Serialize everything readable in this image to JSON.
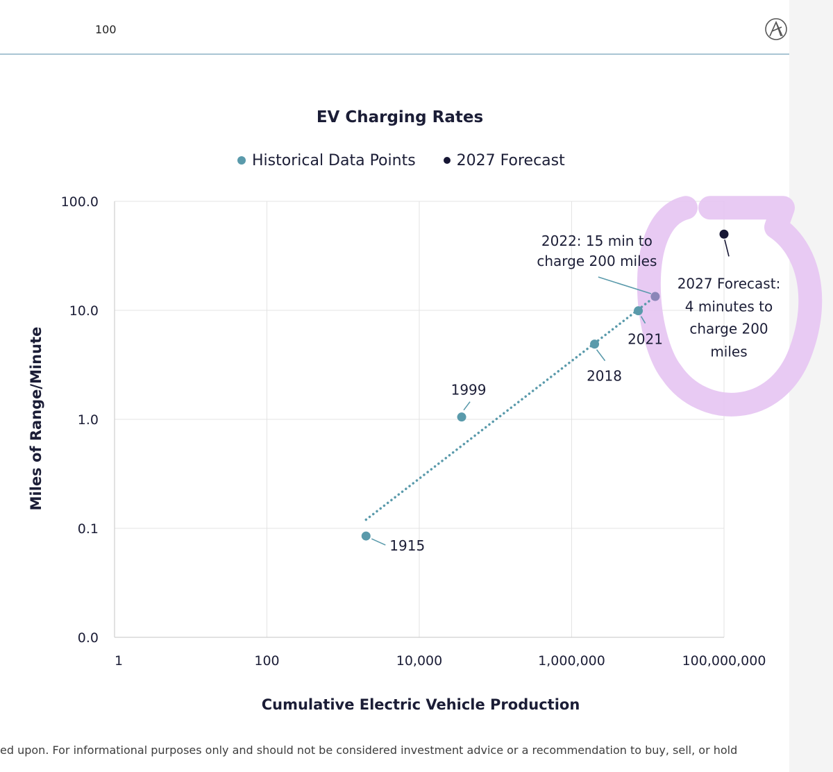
{
  "page": {
    "page_number": "100",
    "disclaimer": "ed upon. For informational purposes only and should not be considered investment advice or a recommendation to buy, sell, or hold"
  },
  "colors": {
    "historical": "#5a9aab",
    "forecast": "#161634",
    "highlight_2022": "#8b86b8",
    "highlight_mark": "#e6c6f2",
    "trendline": "#5a9aab",
    "grid": "#e3e3e3"
  },
  "icons": {
    "logo": "ark-logo-icon"
  },
  "chart_data": {
    "type": "scatter",
    "title": "EV Charging Rates",
    "xlabel": "Cumulative Electric Vehicle Production",
    "ylabel": "Miles of Range/Minute",
    "x_scale": "log",
    "y_scale": "log",
    "xlim": [
      1,
      100000000
    ],
    "ylim": [
      0.01,
      100
    ],
    "x_ticks": [
      {
        "value": 1,
        "label": "1"
      },
      {
        "value": 100,
        "label": "100"
      },
      {
        "value": 10000,
        "label": "10,000"
      },
      {
        "value": 1000000,
        "label": "1,000,000"
      },
      {
        "value": 100000000,
        "label": "100,000,000"
      }
    ],
    "y_ticks": [
      {
        "value": 0.01,
        "label": "0.0"
      },
      {
        "value": 0.1,
        "label": "0.1"
      },
      {
        "value": 1,
        "label": "1.0"
      },
      {
        "value": 10,
        "label": "10.0"
      },
      {
        "value": 100,
        "label": "100.0"
      }
    ],
    "legend": [
      "Historical Data Points",
      "2027 Forecast"
    ],
    "legend_position": "top-center",
    "grid": true,
    "series": [
      {
        "name": "Historical Data Points",
        "points": [
          {
            "label": "1915",
            "x": 2000,
            "y": 0.085
          },
          {
            "label": "1999",
            "x": 36000,
            "y": 1.05
          },
          {
            "label": "2018",
            "x": 2000000,
            "y": 4.9
          },
          {
            "label": "2021",
            "x": 7500000,
            "y": 9.9
          },
          {
            "label": "2022: 15 min to charge 200 miles",
            "x": 12500000,
            "y": 13.4
          }
        ]
      },
      {
        "name": "2027 Forecast",
        "points": [
          {
            "label": "2027 Forecast: 4 minutes to charge 200 miles",
            "x": 100000000,
            "y": 50
          }
        ]
      }
    ],
    "trendline": {
      "style": "dotted",
      "from": {
        "x": 2000,
        "y": 0.12
      },
      "to": {
        "x": 12500000,
        "y": 13.4
      }
    },
    "annotations": {
      "p1915": "1915",
      "p1999": "1999",
      "p2018": "2018",
      "p2021": "2021",
      "p2022_line1": "2022: 15 min to",
      "p2022_line2": "charge 200 miles",
      "f2027_line1": "2027 Forecast:",
      "f2027_line2": "4 minutes to",
      "f2027_line3": "charge 200",
      "f2027_line4": "miles"
    }
  }
}
